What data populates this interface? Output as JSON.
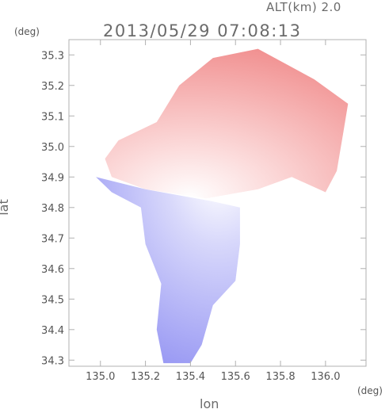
{
  "header": {
    "altitude": "ALT(km) 2.0",
    "datetime": "2013/05/29 07:08:13"
  },
  "axes": {
    "y_unit": "(deg)",
    "x_unit": "(deg)",
    "xlabel": "lon",
    "ylabel": "lat"
  },
  "chart_data": {
    "type": "heatmap",
    "title": "2013/05/29 07:08:13",
    "subtitle": "ALT(km) 2.0",
    "xlabel": "lon",
    "ylabel": "lat",
    "x_unit": "(deg)",
    "y_unit": "(deg)",
    "xlim": [
      134.86,
      136.18
    ],
    "ylim": [
      34.28,
      35.35
    ],
    "x_ticks": [
      135.0,
      135.2,
      135.4,
      135.6,
      135.8,
      136.0
    ],
    "y_ticks": [
      34.3,
      34.4,
      34.5,
      34.6,
      34.7,
      34.8,
      34.9,
      35.0,
      35.1,
      35.2,
      35.3
    ],
    "x_tick_labels": [
      "135.0",
      "135.2",
      "135.4",
      "135.6",
      "135.8",
      "136.0"
    ],
    "y_tick_labels": [
      "34.3",
      "34.4",
      "34.5",
      "34.6",
      "34.7",
      "34.8",
      "34.9",
      "35.0",
      "35.1",
      "35.2",
      "35.3"
    ],
    "radar_center": [
      135.52,
      34.82
    ],
    "colors": {
      "positive": "#f07070",
      "negative": "#7070f0",
      "neutral": "#ffffff",
      "frame": "#b0b0b0"
    },
    "regions": [
      {
        "name": "north",
        "sign": "positive",
        "outline": [
          [
            135.38,
            34.84
          ],
          [
            135.47,
            34.83
          ],
          [
            135.7,
            34.86
          ],
          [
            135.85,
            34.9
          ],
          [
            136.0,
            34.85
          ],
          [
            136.05,
            34.92
          ],
          [
            136.08,
            35.05
          ],
          [
            136.1,
            35.14
          ],
          [
            135.95,
            35.22
          ],
          [
            135.7,
            35.32
          ],
          [
            135.5,
            35.29
          ],
          [
            135.35,
            35.2
          ],
          [
            135.25,
            35.08
          ],
          [
            135.08,
            35.02
          ],
          [
            135.02,
            34.96
          ],
          [
            135.05,
            34.9
          ],
          [
            135.2,
            34.86
          ]
        ]
      },
      {
        "name": "south",
        "sign": "negative",
        "outline": [
          [
            134.98,
            34.9
          ],
          [
            135.2,
            34.86
          ],
          [
            135.5,
            34.82
          ],
          [
            135.62,
            34.8
          ],
          [
            135.62,
            34.68
          ],
          [
            135.6,
            34.56
          ],
          [
            135.5,
            34.48
          ],
          [
            135.45,
            34.35
          ],
          [
            135.4,
            34.29
          ],
          [
            135.28,
            34.29
          ],
          [
            135.25,
            34.4
          ],
          [
            135.27,
            34.55
          ],
          [
            135.2,
            34.68
          ],
          [
            135.18,
            34.8
          ],
          [
            135.05,
            34.85
          ]
        ]
      }
    ]
  }
}
